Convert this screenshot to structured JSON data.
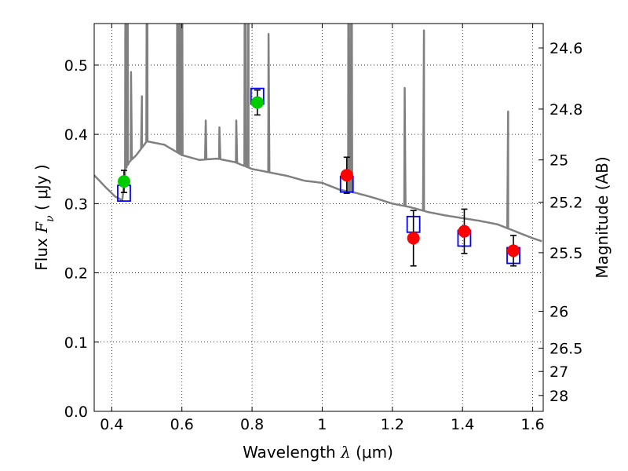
{
  "chart_data": {
    "type": "scatter",
    "xlabel": {
      "prefix": "Wavelength  ",
      "symbol": "λ",
      "unit": " (μm)"
    },
    "ylabel": {
      "prefix": "Flux  ",
      "symbol": "F",
      "subscript": "ν",
      "unit": "  ( μJy )"
    },
    "y2label": "Magnitude (AB)",
    "xlim": [
      0.35,
      1.63
    ],
    "ylim": [
      0.0,
      0.56
    ],
    "x_ticks": [
      {
        "value": 0.4,
        "label": "0.4"
      },
      {
        "value": 0.6,
        "label": "0.6"
      },
      {
        "value": 0.8,
        "label": "0.8"
      },
      {
        "value": 1.0,
        "label": "1"
      },
      {
        "value": 1.2,
        "label": "1.2"
      },
      {
        "value": 1.4,
        "label": "1.4"
      },
      {
        "value": 1.6,
        "label": "1.6"
      }
    ],
    "y_ticks": [
      {
        "value": 0.0,
        "label": "0.0"
      },
      {
        "value": 0.1,
        "label": "0.1"
      },
      {
        "value": 0.2,
        "label": "0.2"
      },
      {
        "value": 0.3,
        "label": "0.3"
      },
      {
        "value": 0.4,
        "label": "0.4"
      },
      {
        "value": 0.5,
        "label": "0.5"
      }
    ],
    "y2_ticks": [
      {
        "value": 24.6,
        "label": "24.6"
      },
      {
        "value": 24.8,
        "label": "24.8"
      },
      {
        "value": 25.0,
        "label": "25"
      },
      {
        "value": 25.2,
        "label": "25.2"
      },
      {
        "value": 25.5,
        "label": "25.5"
      },
      {
        "value": 26.0,
        "label": "26"
      },
      {
        "value": 26.5,
        "label": "26.5"
      },
      {
        "value": 27.0,
        "label": "27"
      },
      {
        "value": 28.0,
        "label": "28"
      }
    ],
    "grid": true,
    "colors": {
      "model": "#808080",
      "model_points": "#0000ff",
      "green_points": "#00cc00",
      "red_points": "#ff0000",
      "errorbars": "#000000"
    },
    "series": [
      {
        "kind": "line",
        "x": [
          0.35,
          0.38,
          0.41,
          0.43,
          0.44,
          0.45,
          0.47,
          0.5,
          0.55,
          0.6,
          0.65,
          0.7,
          0.75,
          0.8,
          0.85,
          0.9,
          0.95,
          1.0,
          1.05,
          1.1,
          1.15,
          1.2,
          1.25,
          1.3,
          1.35,
          1.4,
          1.45,
          1.5,
          1.55,
          1.6,
          1.63
        ],
        "y": [
          0.341,
          0.325,
          0.31,
          0.305,
          0.35,
          0.36,
          0.37,
          0.39,
          0.385,
          0.37,
          0.363,
          0.365,
          0.36,
          0.35,
          0.345,
          0.34,
          0.333,
          0.33,
          0.32,
          0.315,
          0.308,
          0.3,
          0.295,
          0.288,
          0.283,
          0.279,
          0.275,
          0.27,
          0.26,
          0.25,
          0.245
        ],
        "lines": [
          {
            "x": 0.44,
            "peak": 0.9
          },
          {
            "x": 0.445,
            "peak": 0.9
          },
          {
            "x": 0.455,
            "peak": 0.49
          },
          {
            "x": 0.486,
            "peak": 0.455
          },
          {
            "x": 0.501,
            "peak": 0.9
          },
          {
            "x": 0.587,
            "peak": 0.9
          },
          {
            "x": 0.594,
            "peak": 0.9
          },
          {
            "x": 0.6,
            "peak": 0.9
          },
          {
            "x": 0.668,
            "peak": 0.42
          },
          {
            "x": 0.707,
            "peak": 0.41
          },
          {
            "x": 0.755,
            "peak": 0.42
          },
          {
            "x": 0.78,
            "peak": 0.9
          },
          {
            "x": 0.79,
            "peak": 0.9
          },
          {
            "x": 0.847,
            "peak": 0.545
          },
          {
            "x": 1.075,
            "peak": 0.9
          },
          {
            "x": 1.083,
            "peak": 0.9
          },
          {
            "x": 1.235,
            "peak": 0.467
          },
          {
            "x": 1.29,
            "peak": 0.55
          },
          {
            "x": 1.53,
            "peak": 0.433
          }
        ]
      },
      {
        "kind": "squares",
        "x": [
          0.435,
          0.815,
          1.07,
          1.26,
          1.405,
          1.545
        ],
        "y": [
          0.315,
          0.455,
          0.328,
          0.27,
          0.25,
          0.225
        ]
      },
      {
        "kind": "points",
        "x": [
          0.435,
          0.815,
          1.07,
          1.26,
          1.405,
          1.545
        ],
        "y": [
          0.332,
          0.446,
          0.341,
          0.25,
          0.26,
          0.232
        ],
        "yerr": [
          0.016,
          0.018,
          0.026,
          0.04,
          0.032,
          0.022
        ],
        "point_colors": [
          "green",
          "green",
          "red",
          "red",
          "red",
          "red"
        ]
      }
    ]
  }
}
